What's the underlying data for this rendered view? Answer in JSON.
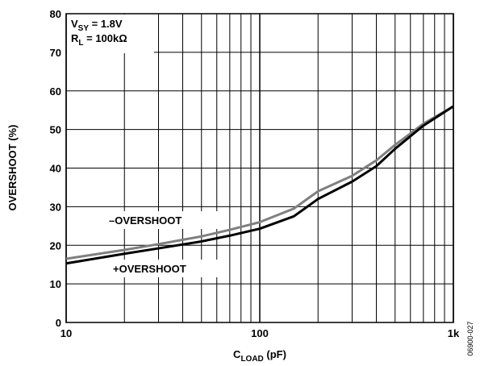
{
  "chart_data": {
    "type": "line",
    "x_log": true,
    "x": [
      10,
      20,
      30,
      50,
      70,
      100,
      150,
      200,
      300,
      400,
      500,
      700,
      1000
    ],
    "series": [
      {
        "name": "–OVERSHOOT",
        "color": "#7f7f7f",
        "values": [
          16.5,
          18.8,
          20.3,
          22.3,
          24,
          26,
          29.5,
          34,
          38,
          42,
          46,
          51.5,
          56
        ]
      },
      {
        "name": "+OVERSHOOT",
        "color": "#000000",
        "values": [
          15.3,
          17.8,
          19.2,
          21,
          22.5,
          24.3,
          27.5,
          32,
          36.5,
          40.5,
          45,
          51,
          56
        ]
      }
    ],
    "xlim": [
      10,
      1000
    ],
    "xticks": [
      10,
      100,
      {
        "value": 1000,
        "label": "1k"
      }
    ],
    "minor_xticks": [
      20,
      30,
      40,
      50,
      60,
      70,
      80,
      90,
      200,
      300,
      400,
      500,
      600,
      700,
      800,
      900
    ],
    "ylim": [
      0,
      80
    ],
    "yticks": [
      0,
      10,
      20,
      30,
      40,
      50,
      60,
      70,
      80
    ],
    "grid": true,
    "ylabel": "OVERSHOOT (%)",
    "xlabel": {
      "main": "C",
      "sub": "LOAD",
      "tail": " (pF)"
    },
    "annotations": [
      {
        "main": "V",
        "sub": "SY",
        "tail": " = 1.8V"
      },
      {
        "main": "R",
        "sub": "L",
        "tail": " = 100kΩ"
      }
    ],
    "figure_id": "06900-027"
  }
}
